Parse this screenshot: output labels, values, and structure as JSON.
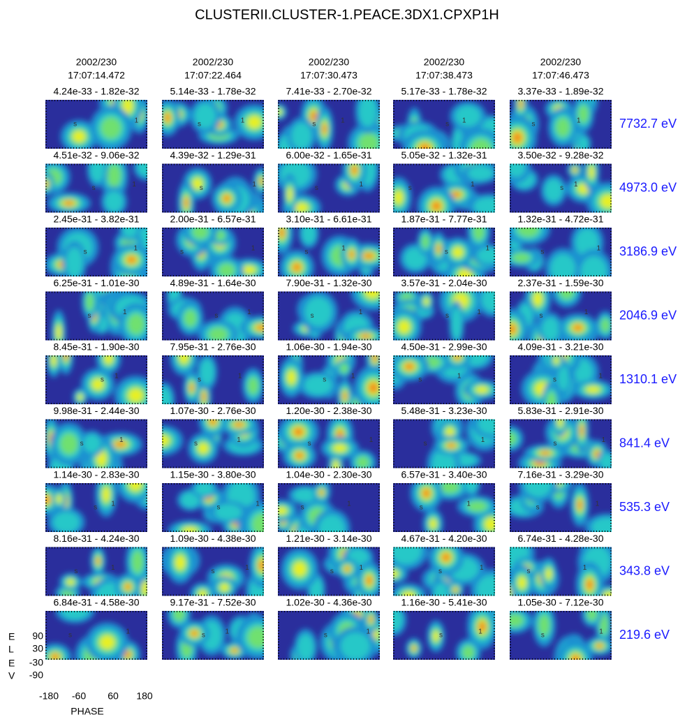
{
  "title": "CLUSTERII.CLUSTER-1.PEACE.3DX1.CPXP1H",
  "columns": [
    {
      "date": "2002/230",
      "time": "17:07:14.472"
    },
    {
      "date": "2002/230",
      "time": "17:07:22.464"
    },
    {
      "date": "2002/230",
      "time": "17:07:30.473"
    },
    {
      "date": "2002/230",
      "time": "17:07:38.473"
    },
    {
      "date": "2002/230",
      "time": "17:07:46.473"
    }
  ],
  "rows": [
    {
      "energy": "7732.7 eV",
      "ranges": [
        "4.24e-33 - 1.82e-32",
        "5.14e-33 - 1.78e-32",
        "7.41e-33 - 2.70e-32",
        "5.17e-33 - 1.78e-32",
        "3.37e-33 - 1.89e-32"
      ]
    },
    {
      "energy": "4973.0 eV",
      "ranges": [
        "4.51e-32 - 9.06e-32",
        "4.39e-32 - 1.29e-31",
        "6.00e-32 - 1.65e-31",
        "5.05e-32 - 1.32e-31",
        "3.50e-32 - 9.28e-32"
      ]
    },
    {
      "energy": "3186.9 eV",
      "ranges": [
        "2.45e-31 - 3.82e-31",
        "2.00e-31 - 6.57e-31",
        "3.10e-31 - 6.61e-31",
        "1.87e-31 - 7.77e-31",
        "1.32e-31 - 4.72e-31"
      ]
    },
    {
      "energy": "2046.9 eV",
      "ranges": [
        "6.25e-31 - 1.01e-30",
        "4.89e-31 - 1.64e-30",
        "7.90e-31 - 1.32e-30",
        "3.57e-31 - 2.04e-30",
        "2.37e-31 - 1.59e-30"
      ]
    },
    {
      "energy": "1310.1 eV",
      "ranges": [
        "8.45e-31 - 1.90e-30",
        "7.95e-31 - 2.76e-30",
        "1.06e-30 - 1.94e-30",
        "4.50e-31 - 2.99e-30",
        "4.09e-31 - 3.21e-30"
      ]
    },
    {
      "energy": "841.4 eV",
      "ranges": [
        "9.98e-31 - 2.44e-30",
        "1.07e-30 - 2.76e-30",
        "1.20e-30 - 2.38e-30",
        "5.48e-31 - 3.23e-30",
        "5.83e-31 - 2.91e-30"
      ]
    },
    {
      "energy": "535.3 eV",
      "ranges": [
        "1.14e-30 - 2.83e-30",
        "1.15e-30 - 3.80e-30",
        "1.04e-30 - 2.30e-30",
        "6.57e-31 - 3.40e-30",
        "7.16e-31 - 3.29e-30"
      ]
    },
    {
      "energy": "343.8 eV",
      "ranges": [
        "8.16e-31 - 4.24e-30",
        "1.09e-30 - 4.38e-30",
        "1.21e-30 - 3.14e-30",
        "4.67e-31 - 4.20e-30",
        "6.74e-31 - 4.28e-30"
      ]
    },
    {
      "energy": "219.6 eV",
      "ranges": [
        "6.84e-31 - 4.58e-30",
        "9.17e-31 - 7.52e-30",
        "1.02e-30 - 4.36e-30",
        "1.16e-30 - 5.41e-30",
        "1.05e-30 - 7.12e-30"
      ]
    }
  ],
  "markers": [
    "s",
    "1"
  ],
  "axes": {
    "y_label_letters": [
      "E",
      "L",
      "E",
      "V"
    ],
    "y_ticks": [
      "90",
      "30",
      "-30",
      "-90"
    ],
    "x_ticks": [
      "-180",
      "-60",
      "60",
      "180"
    ],
    "x_label": "PHASE"
  }
}
